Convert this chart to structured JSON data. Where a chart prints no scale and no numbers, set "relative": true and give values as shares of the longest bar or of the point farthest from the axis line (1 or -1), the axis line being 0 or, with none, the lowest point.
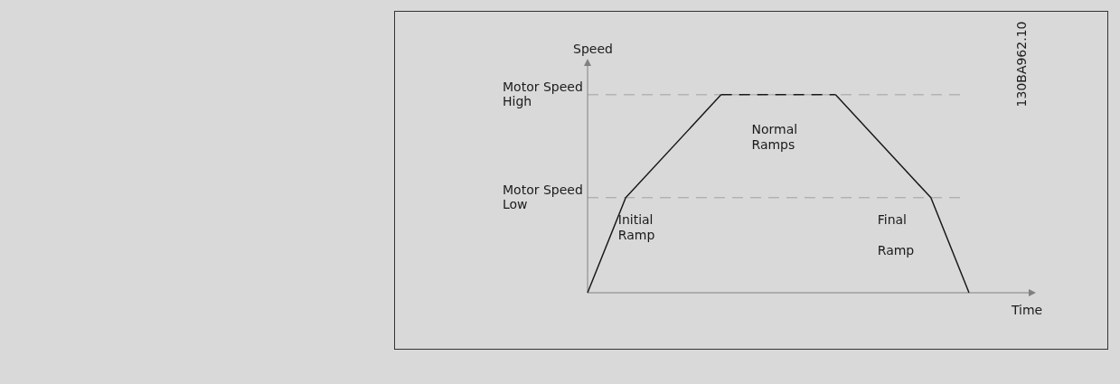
{
  "chart_data": {
    "type": "line",
    "relative": true,
    "ylabel": "Speed",
    "xlabel": "Time",
    "categories": [
      null,
      null,
      null,
      null,
      null,
      null,
      null,
      null,
      null,
      null,
      null,
      null,
      null,
      null,
      null,
      null,
      null,
      null,
      null,
      null,
      null
    ],
    "series": [
      {
        "color": "#1a1a1a",
        "line_style": "solid",
        "values": [
          0,
          null,
          0.48,
          null,
          null,
          null,
          null,
          1,
          null,
          null,
          null,
          null,
          null,
          null,
          null,
          null,
          null,
          null,
          null,
          null,
          null
        ]
      },
      {
        "color": "#1a1a1a",
        "line_style": "dashed",
        "values": [
          null,
          null,
          null,
          null,
          null,
          null,
          null,
          1,
          null,
          null,
          null,
          null,
          null,
          1,
          null,
          null,
          null,
          null,
          null,
          null,
          null
        ]
      },
      {
        "color": "#1a1a1a",
        "line_style": "solid",
        "values": [
          null,
          null,
          null,
          null,
          null,
          null,
          null,
          null,
          null,
          null,
          null,
          null,
          null,
          1,
          null,
          null,
          null,
          null,
          0.48,
          null,
          0
        ]
      }
    ],
    "ref_lines": [
      {
        "axis": "y",
        "value": 1,
        "label": "Motor Speed\nHigh",
        "color": "#a0a0a0",
        "line_style": "dashed"
      },
      {
        "axis": "y",
        "value": 0.48,
        "label": "Motor Speed\nLow",
        "color": "#a0a0a0",
        "line_style": "dashed"
      }
    ],
    "annotations": [
      "Initial\nRamp",
      "Normal\nRamps",
      "Final\n\nRamp",
      "130BA962.10"
    ],
    "grid": false,
    "legend": false,
    "marker": "none"
  }
}
